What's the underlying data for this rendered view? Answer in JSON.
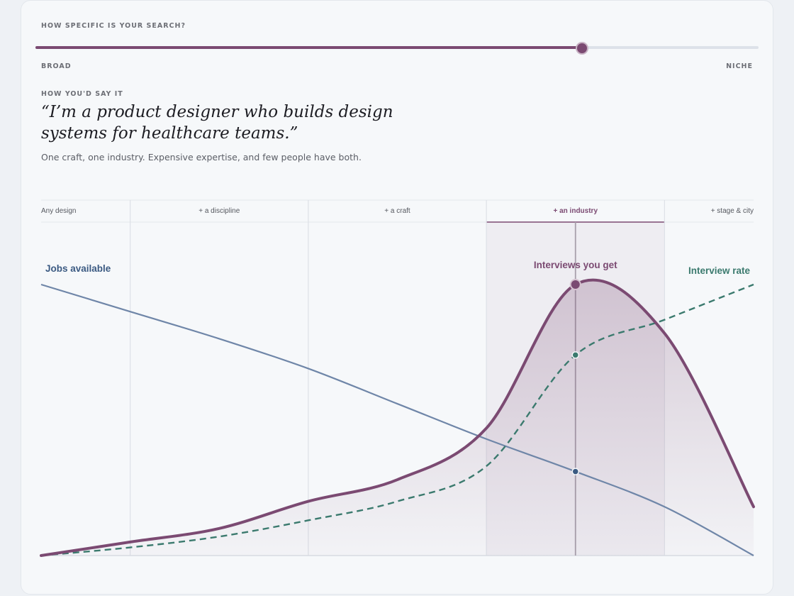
{
  "slider": {
    "question": "HOW SPECIFIC IS YOUR SEARCH?",
    "min_label": "BROAD",
    "max_label": "NICHE",
    "value": 0.755
  },
  "statement": {
    "label": "HOW YOU'D SAY IT",
    "quote": "“I’m a product designer who builds design systems for healthcare teams.”",
    "description": "One craft, one industry. Expensive expertise, and few people have both."
  },
  "colors": {
    "accent": "#7b4a72",
    "jobs": "#6f86a8",
    "jobs_label": "#3b5a82",
    "rate": "#3b7a6e"
  },
  "chart_data": {
    "type": "line",
    "title": "",
    "xlabel": "",
    "ylabel": "",
    "stages": [
      "Any design",
      "+ a discipline",
      "+ a craft",
      "+ an industry",
      "+ stage & city"
    ],
    "selected_stage": 3,
    "selected_x": 3.0,
    "xlim": [
      0,
      4
    ],
    "ylim": [
      0,
      1
    ],
    "series": [
      {
        "name": "Jobs available",
        "style": "solid",
        "x": [
          0,
          0.5,
          1,
          1.5,
          2,
          2.5,
          3,
          3.5,
          4
        ],
        "values": [
          1.0,
          0.9,
          0.8,
          0.69,
          0.56,
          0.43,
          0.31,
          0.18,
          0.0
        ]
      },
      {
        "name": "Interview rate",
        "style": "dashed",
        "x": [
          0,
          0.5,
          1,
          1.5,
          2,
          2.5,
          3,
          3.5,
          4
        ],
        "values": [
          0.0,
          0.03,
          0.07,
          0.13,
          0.2,
          0.33,
          0.74,
          0.87,
          1.0
        ]
      },
      {
        "name": "Interviews you get",
        "style": "bold",
        "x": [
          0,
          0.5,
          1,
          1.5,
          2,
          2.5,
          3,
          3.5,
          4
        ],
        "values": [
          0.0,
          0.05,
          0.1,
          0.2,
          0.28,
          0.47,
          1.0,
          0.82,
          0.18
        ]
      }
    ]
  }
}
